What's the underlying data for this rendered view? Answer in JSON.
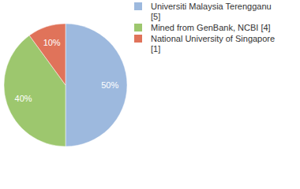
{
  "chart_data": {
    "type": "pie",
    "categories": [
      "Universiti Malaysia Terengganu [5]",
      "Mined from GenBank, NCBI [4]",
      "National University of Singapore [1]"
    ],
    "values": [
      50,
      40,
      10
    ],
    "value_labels": [
      "50%",
      "40%",
      "10%"
    ],
    "colors": [
      "#9db9de",
      "#9dc76e",
      "#e0735a"
    ],
    "data_labels": true,
    "legend": "top-right"
  }
}
